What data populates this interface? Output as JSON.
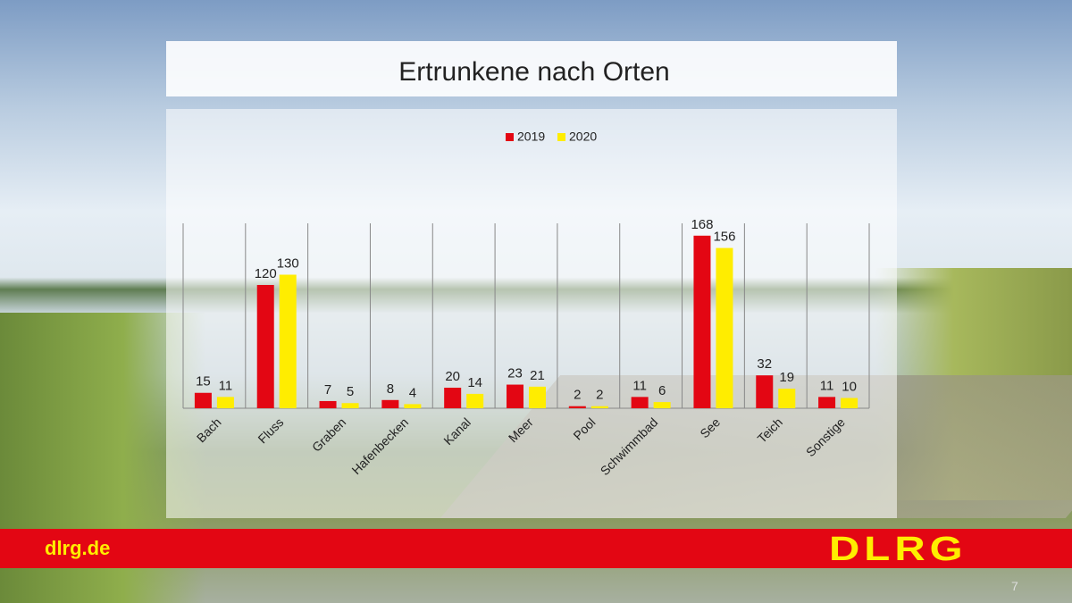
{
  "chart_data": {
    "type": "bar",
    "title": "Ertrunkene nach Orten",
    "categories": [
      "Bach",
      "Fluss",
      "Graben",
      "Hafenbecken",
      "Kanal",
      "Meer",
      "Pool",
      "Schwimmbad",
      "See",
      "Teich",
      "Sonstige"
    ],
    "series": [
      {
        "name": "2019",
        "color": "#e30613",
        "values": [
          15,
          120,
          7,
          8,
          20,
          23,
          2,
          11,
          168,
          32,
          11
        ]
      },
      {
        "name": "2020",
        "color": "#ffed00",
        "values": [
          11,
          130,
          5,
          4,
          14,
          21,
          2,
          6,
          156,
          19,
          10
        ]
      }
    ],
    "ylim": [
      0,
      180
    ],
    "legend": "top"
  },
  "footer": {
    "url": "dlrg.de",
    "logo": "DLRG",
    "page": "7"
  }
}
